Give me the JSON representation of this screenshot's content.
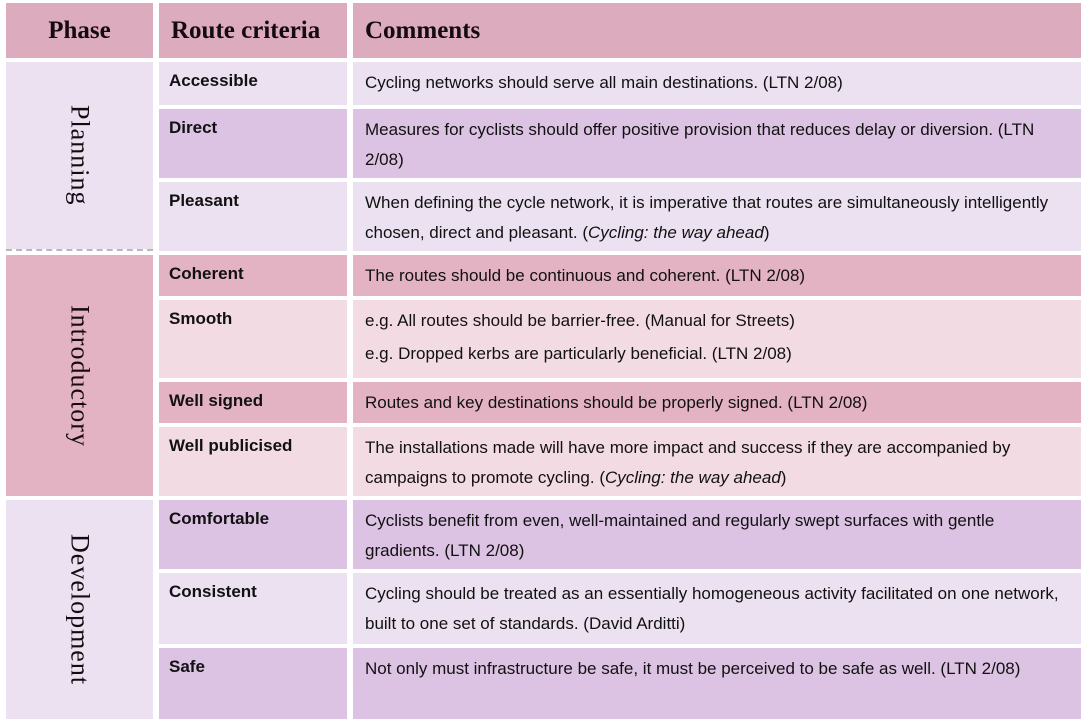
{
  "colors": {
    "header_bg": "#dcabbe",
    "rose_row": "#e3b2c3",
    "light_pink_row": "#f3dbe3",
    "light_lavender_row": "#ece1f0",
    "medium_lavender_row": "#dcc2e3",
    "divider_dashed": "#b8b8b8",
    "text": "#111111"
  },
  "table": {
    "headers": {
      "phase": "Phase",
      "criteria": "Route criteria",
      "comments": "Comments"
    },
    "sections": [
      {
        "phase": "Planning",
        "rows": [
          {
            "criterion": "Accessible",
            "comment": [
              {
                "segments": [
                  {
                    "text": "Cycling networks should serve all main destinations. (LTN 2/08)",
                    "italic": false
                  }
                ]
              }
            ]
          },
          {
            "criterion": "Direct",
            "comment": [
              {
                "segments": [
                  {
                    "text": "Measures for cyclists should offer positive provision that reduces delay or diversion. (LTN 2/08)",
                    "italic": false
                  }
                ]
              }
            ]
          },
          {
            "criterion": "Pleasant",
            "comment": [
              {
                "segments": [
                  {
                    "text": "When defining the cycle network, it is imperative that routes are simultaneously intelligently chosen, direct and pleasant. (",
                    "italic": false
                  },
                  {
                    "text": "Cycling: the way ahead",
                    "italic": true
                  },
                  {
                    "text": ")",
                    "italic": false
                  }
                ]
              }
            ]
          }
        ]
      },
      {
        "phase": "Introductory",
        "rows": [
          {
            "criterion": "Coherent",
            "comment": [
              {
                "segments": [
                  {
                    "text": "The routes should be continuous and coherent. (LTN 2/08)",
                    "italic": false
                  }
                ]
              }
            ]
          },
          {
            "criterion": "Smooth",
            "comment": [
              {
                "segments": [
                  {
                    "text": "e.g. All routes  should be barrier-free. (Manual for Streets)",
                    "italic": false
                  }
                ]
              },
              {
                "segments": [
                  {
                    "text": "e.g. Dropped kerbs are particularly beneficial. (LTN 2/08)",
                    "italic": false
                  }
                ]
              }
            ]
          },
          {
            "criterion": "Well signed",
            "comment": [
              {
                "segments": [
                  {
                    "text": "Routes and key destinations should be properly signed. (LTN 2/08)",
                    "italic": false
                  }
                ]
              }
            ]
          },
          {
            "criterion": "Well publicised",
            "comment": [
              {
                "segments": [
                  {
                    "text": "The installations made will have more impact and success if they are accompanied by campaigns to promote cycling. (",
                    "italic": false
                  },
                  {
                    "text": "Cycling: the way ahead",
                    "italic": true
                  },
                  {
                    "text": ")",
                    "italic": false
                  }
                ]
              }
            ]
          }
        ]
      },
      {
        "phase": "Development",
        "rows": [
          {
            "criterion": "Comfortable",
            "comment": [
              {
                "segments": [
                  {
                    "text": "Cyclists benefit from even, well-maintained and regularly swept surfaces with gentle gradients. (LTN 2/08)",
                    "italic": false
                  }
                ]
              }
            ]
          },
          {
            "criterion": "Consistent",
            "comment": [
              {
                "segments": [
                  {
                    "text": "Cycling should be treated as an essentially homogeneous activity facilitated on one network, built to one set of standards. (David Arditti)",
                    "italic": false
                  }
                ]
              }
            ]
          },
          {
            "criterion": "Safe",
            "comment": [
              {
                "segments": [
                  {
                    "text": "Not only must infrastructure be safe, it must be perceived to be safe as well. (LTN 2/08)",
                    "italic": false
                  }
                ]
              }
            ]
          }
        ]
      }
    ]
  }
}
